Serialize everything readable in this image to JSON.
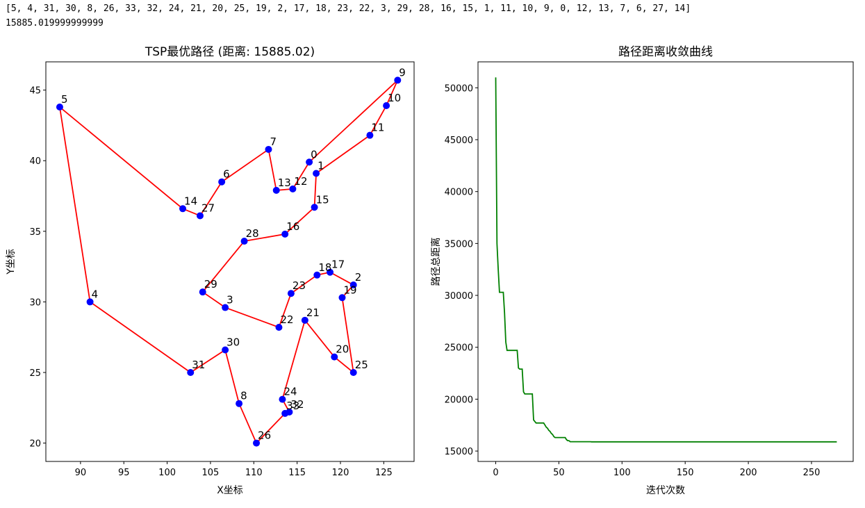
{
  "output": {
    "route_text": "[5, 4, 31, 30, 8, 26, 33, 32, 24, 21, 20, 25, 19, 2, 17, 18, 23, 22, 3, 29, 28, 16, 15, 1, 11, 10, 9, 0, 12, 13, 7, 6, 27, 14]",
    "distance_text": "15885.019999999999"
  },
  "colors": {
    "route_line": "#ff0000",
    "city_marker": "#0000ff",
    "convergence_line": "#008000",
    "axes": "#000000"
  },
  "chart_data": [
    {
      "type": "scatter",
      "title": "TSP最优路径 (距离: 15885.02)",
      "xlabel": "X坐标",
      "ylabel": "Y坐标",
      "xlim": [
        86,
        128.5
      ],
      "ylim": [
        18.7,
        47
      ],
      "xticks": [
        90,
        95,
        100,
        105,
        110,
        115,
        120,
        125
      ],
      "yticks": [
        20,
        25,
        30,
        35,
        40,
        45
      ],
      "grid": false,
      "points": [
        {
          "id": "0",
          "x": 116.4,
          "y": 39.9
        },
        {
          "id": "1",
          "x": 117.2,
          "y": 39.1
        },
        {
          "id": "2",
          "x": 121.5,
          "y": 31.2
        },
        {
          "id": "3",
          "x": 106.7,
          "y": 29.6
        },
        {
          "id": "4",
          "x": 91.1,
          "y": 30.0
        },
        {
          "id": "5",
          "x": 87.6,
          "y": 43.8
        },
        {
          "id": "6",
          "x": 106.3,
          "y": 38.5
        },
        {
          "id": "7",
          "x": 111.7,
          "y": 40.8
        },
        {
          "id": "8",
          "x": 108.3,
          "y": 22.8
        },
        {
          "id": "9",
          "x": 126.6,
          "y": 45.7
        },
        {
          "id": "10",
          "x": 125.3,
          "y": 43.9
        },
        {
          "id": "11",
          "x": 123.4,
          "y": 41.8
        },
        {
          "id": "12",
          "x": 114.5,
          "y": 38.0
        },
        {
          "id": "13",
          "x": 112.6,
          "y": 37.9
        },
        {
          "id": "14",
          "x": 101.8,
          "y": 36.6
        },
        {
          "id": "15",
          "x": 117.0,
          "y": 36.7
        },
        {
          "id": "16",
          "x": 113.6,
          "y": 34.8
        },
        {
          "id": "17",
          "x": 118.8,
          "y": 32.1
        },
        {
          "id": "18",
          "x": 117.3,
          "y": 31.9
        },
        {
          "id": "19",
          "x": 120.2,
          "y": 30.3
        },
        {
          "id": "20",
          "x": 119.3,
          "y": 26.1
        },
        {
          "id": "21",
          "x": 115.9,
          "y": 28.7
        },
        {
          "id": "22",
          "x": 112.9,
          "y": 28.2
        },
        {
          "id": "23",
          "x": 114.3,
          "y": 30.6
        },
        {
          "id": "24",
          "x": 113.3,
          "y": 23.1
        },
        {
          "id": "25",
          "x": 121.5,
          "y": 25.0
        },
        {
          "id": "26",
          "x": 110.3,
          "y": 20.0
        },
        {
          "id": "27",
          "x": 103.8,
          "y": 36.1
        },
        {
          "id": "28",
          "x": 108.9,
          "y": 34.3
        },
        {
          "id": "29",
          "x": 104.1,
          "y": 30.7
        },
        {
          "id": "30",
          "x": 106.7,
          "y": 26.6
        },
        {
          "id": "31",
          "x": 102.7,
          "y": 25.0
        },
        {
          "id": "32",
          "x": 114.1,
          "y": 22.2
        },
        {
          "id": "33",
          "x": 113.6,
          "y": 22.1
        }
      ],
      "route": [
        5,
        4,
        31,
        30,
        8,
        26,
        33,
        32,
        24,
        21,
        20,
        25,
        19,
        2,
        17,
        18,
        23,
        22,
        3,
        29,
        28,
        16,
        15,
        1,
        11,
        10,
        9,
        0,
        12,
        13,
        7,
        6,
        27,
        14,
        5
      ]
    },
    {
      "type": "line",
      "title": "路径距离收敛曲线",
      "xlabel": "迭代次数",
      "ylabel": "路径总距离",
      "xlim": [
        -14,
        283
      ],
      "ylim": [
        14000,
        52500
      ],
      "xticks": [
        0,
        50,
        100,
        150,
        200,
        250
      ],
      "yticks": [
        15000,
        20000,
        25000,
        30000,
        35000,
        40000,
        45000,
        50000
      ],
      "grid": false,
      "series": [
        {
          "x": [
            0,
            1,
            2,
            3,
            4,
            6,
            7,
            8,
            9,
            10,
            17,
            18,
            19,
            21,
            22,
            23,
            25,
            26,
            29,
            30,
            32,
            38,
            39,
            40,
            41,
            42,
            43,
            44,
            45,
            46,
            47,
            48,
            49,
            50,
            55,
            56,
            57,
            58,
            59,
            75,
            76,
            270
          ],
          "y": [
            51000,
            35000,
            32500,
            30300,
            30300,
            30300,
            28300,
            25500,
            24700,
            24700,
            24700,
            23000,
            22900,
            22900,
            20700,
            20500,
            20500,
            20500,
            20500,
            18000,
            17700,
            17700,
            17500,
            17300,
            17200,
            17000,
            16900,
            16700,
            16600,
            16400,
            16300,
            16300,
            16300,
            16300,
            16300,
            16100,
            16000,
            16000,
            15900,
            15900,
            15885,
            15885
          ]
        }
      ]
    }
  ]
}
